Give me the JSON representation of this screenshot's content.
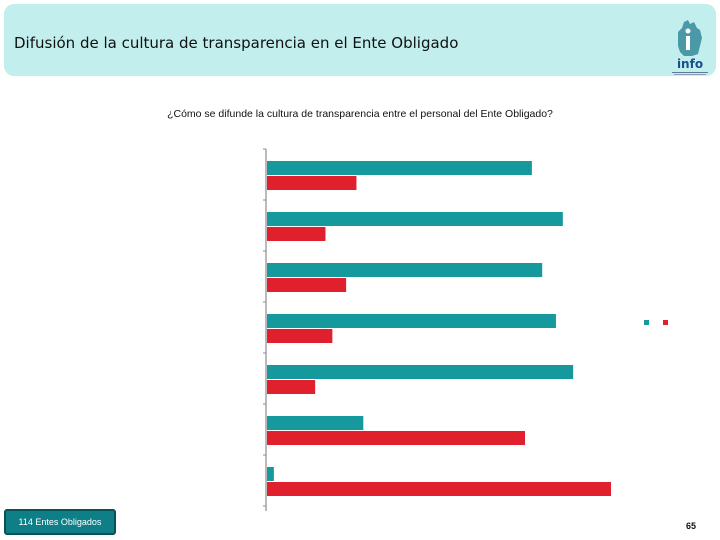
{
  "header": {
    "title": "Difusión de la cultura de transparencia en el Ente Obligado",
    "logo_text": "info"
  },
  "chart_data": {
    "type": "bar",
    "orientation": "horizontal",
    "title": "¿Cómo se difunde la cultura de transparencia entre el personal del Ente Obligado?",
    "categories": [
      "",
      "",
      "",
      "",
      "",
      "",
      ""
    ],
    "series": [
      {
        "color": "#16999c",
        "values": [
          77,
          86,
          80,
          84,
          89,
          28,
          2
        ]
      },
      {
        "color": "#e0202c",
        "values": [
          26,
          17,
          23,
          19,
          14,
          75,
          100
        ]
      }
    ],
    "xlim": [
      0,
      100
    ],
    "legend_position": "right",
    "grid": false
  },
  "footer": {
    "badge": "114 Entes Obligados",
    "page_number": "65"
  }
}
